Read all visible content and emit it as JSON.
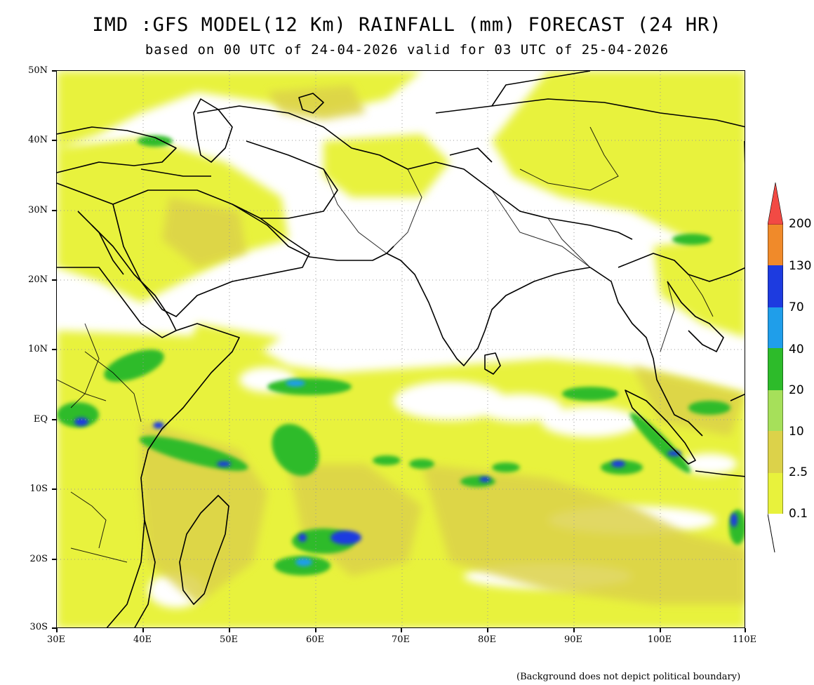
{
  "title": "IMD :GFS MODEL(12 Km) RAINFALL (mm) FORECAST (24 HR)",
  "subtitle": "based on 00 UTC of 24-04-2026 valid for 03 UTC of 25-04-2026",
  "lat_labels": [
    "50N",
    "40N",
    "30N",
    "20N",
    "10N",
    "EQ",
    "10S",
    "20S",
    "30S"
  ],
  "lon_labels": [
    "30E",
    "40E",
    "50E",
    "60E",
    "70E",
    "80E",
    "90E",
    "100E",
    "110E"
  ],
  "map_extent": {
    "lon_min": 30,
    "lon_max": 110,
    "lat_min": -30,
    "lat_max": 50
  },
  "legend": {
    "thresholds": [
      "0.1",
      "2.5",
      "10",
      "20",
      "40",
      "70",
      "130",
      "200"
    ],
    "colors": [
      "#e8f23c",
      "#dcd24a",
      "#a6e05a",
      "#2dbb2a",
      "#1f9eea",
      "#1d3be0",
      "#f08a2a",
      "#f24a44"
    ]
  },
  "footnote": "(Background does not depict political boundary)"
}
